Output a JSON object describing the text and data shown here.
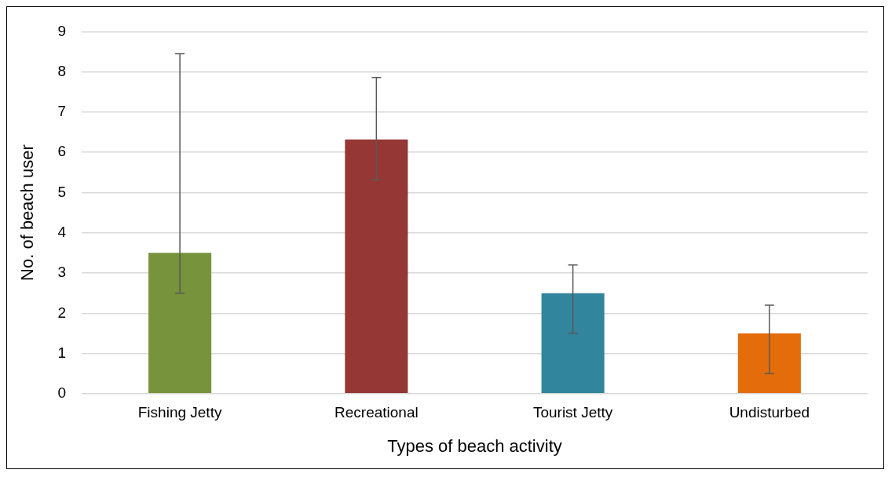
{
  "chart_data": {
    "type": "bar",
    "xlabel": "Types of beach activity",
    "ylabel": "No. of beach user",
    "categories": [
      "Fishing Jetty",
      "Recreational",
      "Tourist Jetty",
      "Undisturbed"
    ],
    "values": [
      3.5,
      6.32,
      2.5,
      1.5
    ],
    "colors": [
      "#77933c",
      "#953735",
      "#31859c",
      "#e46c0a"
    ],
    "errors": [
      [
        2.5,
        8.45
      ],
      [
        5.32,
        7.86
      ],
      [
        1.5,
        3.2
      ],
      [
        0.5,
        2.2
      ]
    ],
    "ylim": [
      0,
      9
    ],
    "yticks": [
      0,
      1,
      2,
      3,
      4,
      5,
      6,
      7,
      8,
      9
    ],
    "grid": "y",
    "legend": false
  }
}
